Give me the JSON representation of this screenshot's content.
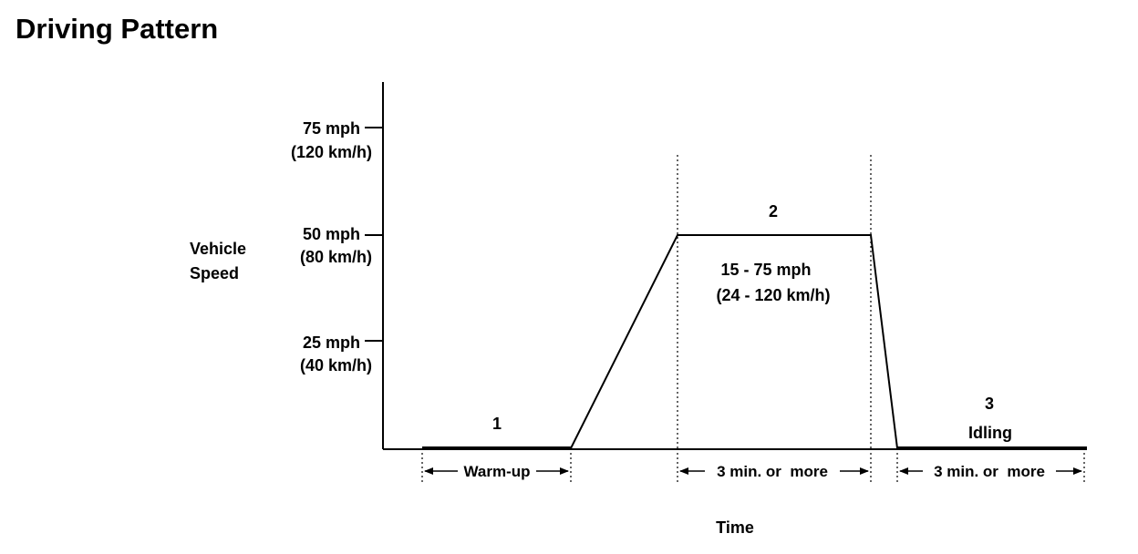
{
  "title": "Driving Pattern",
  "y_axis_label": [
    "Vehicle",
    "Speed"
  ],
  "x_axis_label": "Time",
  "y_ticks": [
    {
      "mph": "75 mph",
      "kmh": "(120 km/h)"
    },
    {
      "mph": "50 mph",
      "kmh": "(80 km/h)"
    },
    {
      "mph": "25 mph",
      "kmh": "(40 km/h)"
    }
  ],
  "phases": {
    "p1": {
      "number": "1",
      "duration": "Warm-up"
    },
    "p2": {
      "number": "2",
      "speed_range_mph": "15 - 75 mph",
      "speed_range_kmh": "(24 - 120 km/h)",
      "duration": "3 min. or  more"
    },
    "p3": {
      "number": "3",
      "name": "Idling",
      "duration": "3 min. or  more"
    }
  }
}
